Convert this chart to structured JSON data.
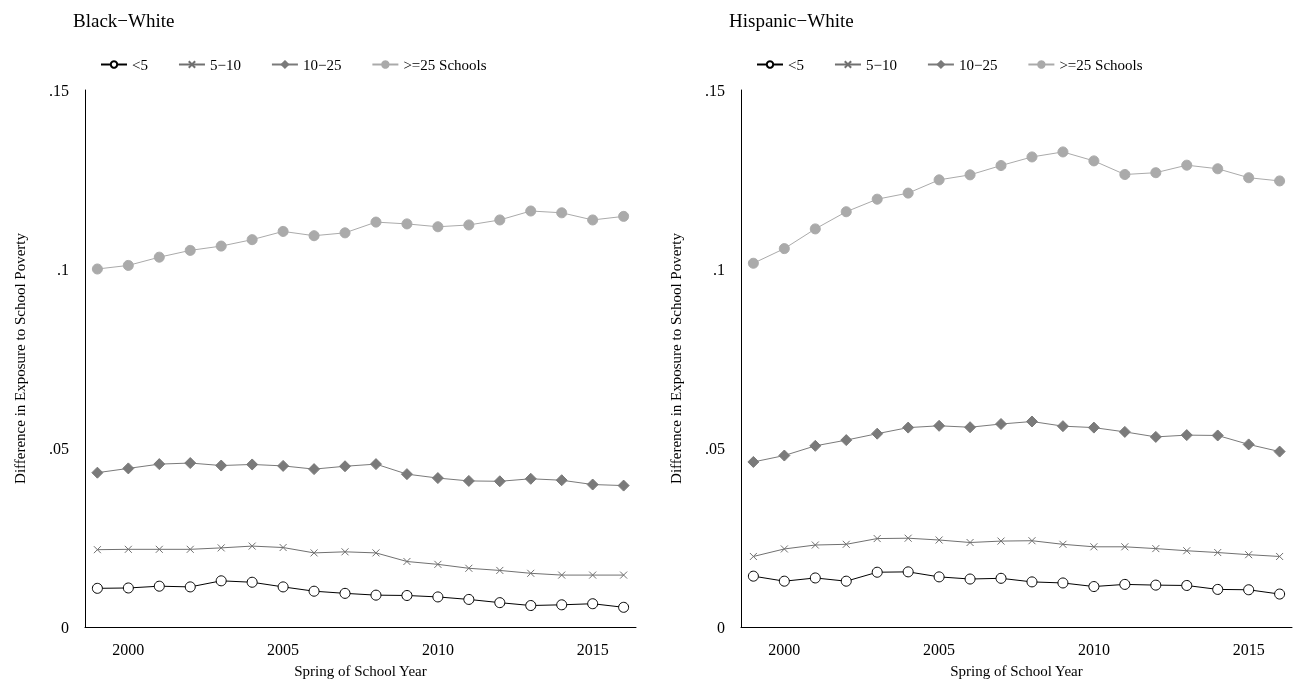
{
  "chart_data": [
    {
      "type": "line",
      "title": "Black−White",
      "xlabel": "Spring of School Year",
      "ylabel": "Difference in Exposure to School Poverty",
      "x": [
        1999,
        2000,
        2001,
        2002,
        2003,
        2004,
        2005,
        2006,
        2007,
        2008,
        2009,
        2010,
        2011,
        2012,
        2013,
        2014,
        2015,
        2016
      ],
      "series": [
        {
          "name": "<5",
          "color": "#000000",
          "marker": "circle",
          "values": [
            0.0108,
            0.0109,
            0.0114,
            0.0112,
            0.0129,
            0.0125,
            0.0112,
            0.01,
            0.0094,
            0.0089,
            0.0088,
            0.0084,
            0.0077,
            0.0068,
            0.006,
            0.0062,
            0.0065,
            0.0055
          ]
        },
        {
          "name": "5−10",
          "color": "#707070",
          "marker": "cross",
          "values": [
            0.0216,
            0.0217,
            0.0217,
            0.0217,
            0.0221,
            0.0226,
            0.0222,
            0.0207,
            0.021,
            0.0207,
            0.0183,
            0.0175,
            0.0164,
            0.0158,
            0.015,
            0.0145,
            0.0145,
            0.0145
          ]
        },
        {
          "name": "10−25",
          "color": "#7a7a7a",
          "marker": "diamond",
          "values": [
            0.0431,
            0.0443,
            0.0455,
            0.0458,
            0.0451,
            0.0454,
            0.045,
            0.0441,
            0.0449,
            0.0455,
            0.0427,
            0.0416,
            0.0408,
            0.0407,
            0.0414,
            0.041,
            0.0398,
            0.0395
          ]
        },
        {
          "name": ">=25 Schools",
          "color": "#aaaaaa",
          "marker": "circle",
          "values": [
            0.1,
            0.101,
            0.1033,
            0.1052,
            0.1064,
            0.1082,
            0.1105,
            0.1093,
            0.1101,
            0.1131,
            0.1126,
            0.1118,
            0.1123,
            0.1137,
            0.1162,
            0.1157,
            0.1137,
            0.1147
          ]
        }
      ],
      "xlim": [
        1998.6,
        2016.4
      ],
      "xticks": [
        2000,
        2005,
        2010,
        2015
      ],
      "ylim": [
        0,
        0.15
      ],
      "yticks": [
        {
          "value": 0,
          "label": "0"
        },
        {
          "value": 0.05,
          "label": ".05"
        },
        {
          "value": 0.1,
          "label": ".1"
        },
        {
          "value": 0.15,
          "label": ".15"
        }
      ],
      "grid": false,
      "legend": "top"
    },
    {
      "type": "line",
      "title": "Hispanic−White",
      "xlabel": "Spring of School Year",
      "ylabel": "Difference in Exposure to School Poverty",
      "x": [
        1999,
        2000,
        2001,
        2002,
        2003,
        2004,
        2005,
        2006,
        2007,
        2008,
        2009,
        2010,
        2011,
        2012,
        2013,
        2014,
        2015,
        2016
      ],
      "series": [
        {
          "name": "<5",
          "color": "#000000",
          "marker": "circle",
          "values": [
            0.0142,
            0.0128,
            0.0137,
            0.0128,
            0.0153,
            0.0154,
            0.014,
            0.0134,
            0.0136,
            0.0126,
            0.0123,
            0.0113,
            0.0119,
            0.0117,
            0.0116,
            0.0105,
            0.0104,
            0.0092
          ]
        },
        {
          "name": "5−10",
          "color": "#707070",
          "marker": "cross",
          "values": [
            0.0197,
            0.0218,
            0.0229,
            0.0231,
            0.0247,
            0.0248,
            0.0243,
            0.0236,
            0.024,
            0.0241,
            0.0231,
            0.0224,
            0.0224,
            0.0219,
            0.0213,
            0.0208,
            0.0202,
            0.0197
          ]
        },
        {
          "name": "10−25",
          "color": "#7a7a7a",
          "marker": "diamond",
          "values": [
            0.0461,
            0.0479,
            0.0506,
            0.0522,
            0.054,
            0.0557,
            0.0562,
            0.0558,
            0.0567,
            0.0574,
            0.0561,
            0.0557,
            0.0545,
            0.0531,
            0.0536,
            0.0535,
            0.051,
            0.049
          ]
        },
        {
          "name": ">=25 Schools",
          "color": "#aaaaaa",
          "marker": "circle",
          "values": [
            0.1016,
            0.1057,
            0.1112,
            0.116,
            0.1195,
            0.1212,
            0.1249,
            0.1263,
            0.1289,
            0.1313,
            0.1327,
            0.1302,
            0.1264,
            0.1269,
            0.129,
            0.128,
            0.1255,
            0.1246
          ]
        }
      ],
      "xlim": [
        1998.6,
        2016.4
      ],
      "xticks": [
        2000,
        2005,
        2010,
        2015
      ],
      "ylim": [
        0,
        0.15
      ],
      "yticks": [
        {
          "value": 0,
          "label": "0"
        },
        {
          "value": 0.05,
          "label": ".05"
        },
        {
          "value": 0.1,
          "label": ".1"
        },
        {
          "value": 0.15,
          "label": ".15"
        }
      ],
      "grid": false,
      "legend": "top"
    }
  ]
}
